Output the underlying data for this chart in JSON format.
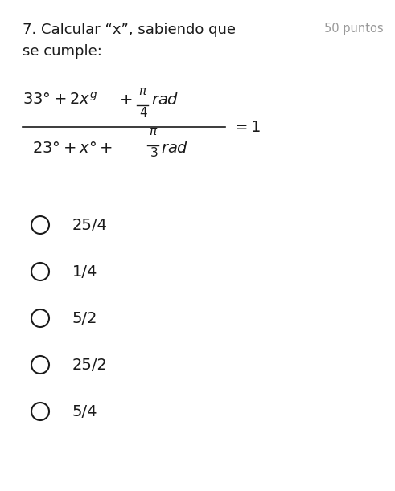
{
  "title_main": "7. Calcular “x”, sabiendo que",
  "title_points": "50 puntos",
  "subtitle": "se cumple:",
  "bg_color": "#ffffff",
  "text_color": "#1a1a1a",
  "gray_color": "#999999",
  "options": [
    "25/4",
    "1/4",
    "5/2",
    "25/2",
    "5/4"
  ],
  "fig_width": 4.91,
  "fig_height": 6.11,
  "dpi": 100
}
